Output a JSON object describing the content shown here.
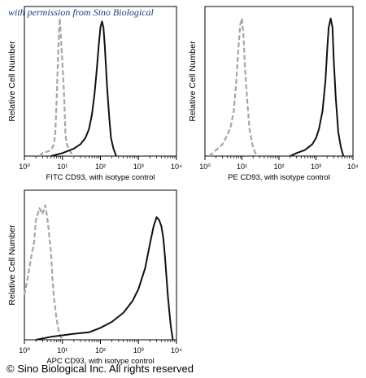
{
  "watermark": "with permission from Sino Biological",
  "copyright": "© Sino Biological Inc. All rights reserved",
  "colors": {
    "isotype": "#a6a6a6",
    "stained": "#111111",
    "frame": "#000000",
    "watermark": "#1a3c86"
  },
  "chart_data": [
    {
      "type": "line",
      "xlabel": "FITC CD93, with isotype control",
      "ylabel": "Relative Cell Number",
      "xscale": "log",
      "xlim": [
        1,
        10000
      ],
      "xticks": [
        "10⁰",
        "10¹",
        "10²",
        "10³",
        "10⁴"
      ],
      "ylim": [
        0,
        100
      ],
      "grid": false,
      "series": [
        {
          "style": "dashed-gray",
          "x": [
            2.5,
            3,
            4,
            5,
            6,
            6.5,
            7,
            7.5,
            8,
            8.5,
            9,
            10,
            11,
            11.5,
            12,
            13,
            15,
            17,
            20
          ],
          "y": [
            0,
            2,
            3,
            4,
            8,
            16,
            35,
            58,
            78,
            92,
            82,
            62,
            42,
            28,
            14,
            8,
            4,
            2,
            0
          ]
        },
        {
          "style": "solid-black",
          "x": [
            5,
            10,
            20,
            30,
            40,
            50,
            60,
            70,
            80,
            90,
            100,
            110,
            120,
            130,
            150,
            170,
            190,
            220,
            260
          ],
          "y": [
            0,
            2,
            5,
            8,
            12,
            18,
            28,
            42,
            58,
            74,
            86,
            90,
            86,
            74,
            46,
            26,
            12,
            5,
            0
          ]
        }
      ]
    },
    {
      "type": "line",
      "xlabel": "PE CD93, with isotype control",
      "ylabel": "Relative Cell Number",
      "xscale": "log",
      "xlim": [
        1,
        10000
      ],
      "xticks": [
        "10⁰",
        "10¹",
        "10²",
        "10³",
        "10⁴"
      ],
      "ylim": [
        0,
        100
      ],
      "grid": false,
      "series": [
        {
          "style": "dashed-gray",
          "x": [
            1.3,
            2,
            3,
            4,
            5,
            6,
            7,
            8,
            9,
            10,
            11,
            12,
            14,
            16,
            19,
            22,
            26
          ],
          "y": [
            0,
            4,
            8,
            14,
            20,
            30,
            50,
            72,
            88,
            92,
            80,
            60,
            36,
            18,
            8,
            3,
            0
          ]
        },
        {
          "style": "solid-black",
          "x": [
            200,
            300,
            500,
            800,
            1000,
            1200,
            1500,
            1800,
            2000,
            2200,
            2500,
            2800,
            3000,
            3400,
            4000,
            4700,
            5500
          ],
          "y": [
            0,
            2,
            4,
            8,
            12,
            18,
            30,
            50,
            70,
            86,
            92,
            86,
            66,
            40,
            16,
            6,
            0
          ]
        }
      ]
    },
    {
      "type": "line",
      "xlabel": "APC CD93, with isotype control",
      "ylabel": "Relative Cell Number",
      "xscale": "log",
      "xlim": [
        1,
        10000
      ],
      "xticks": [
        "10⁰",
        "10¹",
        "10²",
        "10³",
        "10⁴"
      ],
      "ylim": [
        0,
        100
      ],
      "grid": false,
      "series": [
        {
          "style": "dashed-gray",
          "x": [
            1,
            1.2,
            1.5,
            1.8,
            2,
            2.5,
            3,
            3.5,
            4,
            4.5,
            5,
            5.5,
            6,
            7,
            8,
            9,
            10
          ],
          "y": [
            30,
            40,
            55,
            65,
            80,
            88,
            84,
            90,
            82,
            70,
            58,
            40,
            28,
            14,
            6,
            2,
            0
          ]
        },
        {
          "style": "solid-black",
          "x": [
            2,
            5,
            10,
            20,
            50,
            100,
            200,
            400,
            700,
            1000,
            1500,
            2000,
            2500,
            3000,
            3500,
            4000,
            4500,
            5000,
            6000,
            7000,
            8000
          ],
          "y": [
            0,
            2,
            3,
            4,
            5,
            8,
            12,
            18,
            26,
            34,
            48,
            64,
            76,
            82,
            80,
            76,
            68,
            55,
            28,
            10,
            0
          ]
        }
      ]
    }
  ]
}
